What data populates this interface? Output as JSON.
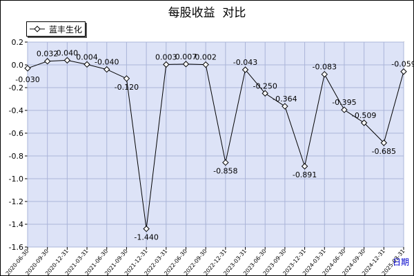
{
  "chart_data": {
    "type": "line",
    "title": "每股收益  对比",
    "xlabel": "日期",
    "ylabel": "",
    "ylim": [
      -1.6,
      0.2
    ],
    "yticks": [
      0.2,
      0.0,
      -0.2,
      -0.4,
      -0.6,
      -0.8,
      -1.0,
      -1.2,
      -1.4,
      -1.6
    ],
    "grid": true,
    "legend_position": "top-left",
    "colors": {
      "plot_background": "#dde3f7",
      "grid": "#aab4d8",
      "line": "#000000",
      "marker_fill": "#ffffff"
    },
    "categories": [
      "2020-06-30",
      "2020-09-30",
      "2020-12-31",
      "2021-03-31",
      "2021-06-30",
      "2021-09-30",
      "2021-12-31",
      "2022-03-31",
      "2022-06-30",
      "2022-09-30",
      "2022-12-31",
      "2023-03-31",
      "2023-06-30",
      "2023-09-30",
      "2023-12-31",
      "2024-03-31",
      "2024-06-30",
      "2024-09-30",
      "2024-12-31",
      "2025-03-31"
    ],
    "series": [
      {
        "name": "蓝丰生化",
        "values": [
          -0.03,
          0.032,
          0.04,
          0.004,
          -0.04,
          -0.12,
          -1.44,
          0.003,
          0.007,
          0.002,
          -0.858,
          -0.043,
          -0.25,
          -0.364,
          -0.891,
          -0.083,
          -0.395,
          -0.509,
          -0.685,
          -0.059
        ],
        "labels": [
          "-0.030",
          "0.032",
          "0.040",
          "0.004",
          "-0.040",
          "-0.120",
          "-1.440",
          "0.003",
          "0.007",
          "0.002",
          "-0.858",
          "-0.043",
          "-0.250",
          "-0.364",
          "-0.891",
          "-0.083",
          "-0.395",
          "-0.509",
          "-0.685",
          "-0.059"
        ]
      }
    ]
  }
}
